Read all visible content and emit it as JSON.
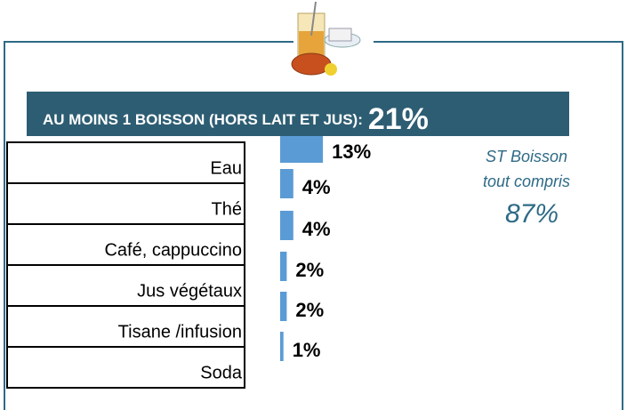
{
  "chart_data": {
    "type": "bar",
    "orientation": "horizontal",
    "title": "AU MOINS 1 BOISSON (HORS LAIT ET JUS):",
    "title_value": "21%",
    "annotation": [
      "ST Boisson",
      "tout compris",
      "87%"
    ],
    "categories": [
      "Eau",
      "Thé",
      "Café, cappuccino",
      "Jus végétaux",
      "Tisane /infusion",
      "Soda"
    ],
    "values": [
      13,
      4,
      4,
      2,
      2,
      1
    ],
    "value_labels": [
      "13%",
      "4%",
      "4%",
      "2%",
      "2%",
      "1%"
    ],
    "color": "#5b9bd5"
  }
}
